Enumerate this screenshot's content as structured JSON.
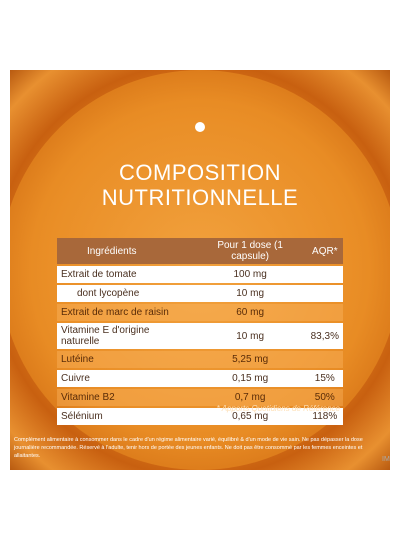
{
  "header": {
    "title_lines": [
      "COMPOSITION",
      "NUTRITIONNELLE"
    ]
  },
  "table": {
    "columns": [
      "Ingrédients",
      "Pour 1 dose (1 capsule)",
      "AQR*"
    ],
    "rows": [
      [
        "Extrait de tomate",
        "100 mg",
        ""
      ],
      [
        "dont lycopène",
        "10 mg",
        ""
      ],
      [
        "Extrait de marc de raisin",
        "60 mg",
        ""
      ],
      [
        "Vitamine E d'origine naturelle",
        "10 mg",
        "83,3%"
      ],
      [
        "Lutéine",
        "5,25 mg",
        ""
      ],
      [
        "Cuivre",
        "0,15 mg",
        "15%"
      ],
      [
        "Vitamine B2",
        "0,7 mg",
        "50%"
      ],
      [
        "Sélénium",
        "0,65 mg",
        "118%"
      ]
    ]
  },
  "footnote": "* Apports Quotidiens de Référence",
  "disclaimer": "Complément alimentaire à consommer dans le cadre d'un régime alimentaire varié, équilibré & d'un mode de vie sain. Ne pas dépasser la dose journalière recommandée. Réservé à l'adulte, tenir hors de portée des jeunes enfants. Ne doit pas être consommé par les femmes enceintes et allaitantes.",
  "logo": "IM"
}
